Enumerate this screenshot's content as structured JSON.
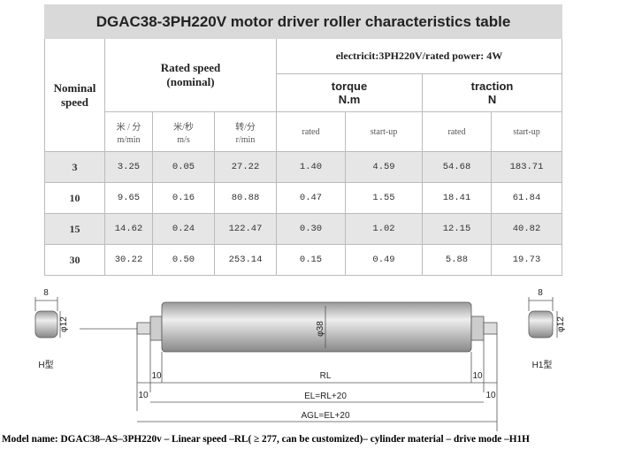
{
  "title": "DGAC38-3PH220V  motor driver roller characteristics table",
  "table": {
    "header": {
      "nominal_speed": "Nominal speed",
      "rated_speed": "Rated speed",
      "rated_speed_note": "(nominal)",
      "power": "electricit:3PH220V/rated power:  4W",
      "torque": "torque",
      "torque_unit": "N.m",
      "traction": "traction",
      "traction_unit": "N",
      "units": [
        [
          "米 / 分",
          "m/min"
        ],
        [
          "米/秒",
          "m/s"
        ],
        [
          "转/分",
          "r/min"
        ]
      ],
      "sub": [
        "rated",
        "start-up",
        "rated",
        "start-up"
      ]
    },
    "rows": [
      [
        "3",
        "3.25",
        "0.05",
        "27.22",
        "1.40",
        "4.59",
        "54.68",
        "183.71"
      ],
      [
        "10",
        "9.65",
        "0.16",
        "80.88",
        "0.47",
        "1.55",
        "18.41",
        "61.84"
      ],
      [
        "15",
        "14.62",
        "0.24",
        "122.47",
        "0.30",
        "1.02",
        "12.15",
        "40.82"
      ],
      [
        "30",
        "30.22",
        "0.50",
        "253.14",
        "0.15",
        "0.49",
        "5.88",
        "19.73"
      ]
    ]
  },
  "diagram": {
    "left_width": "8",
    "left_dia": "φ12",
    "left_type": "H型",
    "tube_dia": "φ38",
    "rl": "RL",
    "offsets": [
      "10",
      "10",
      "10",
      "10"
    ],
    "el": "EL=RL+20",
    "agl": "AGL=EL+20",
    "right_width": "8",
    "right_dia": "φ12",
    "right_type": "H1型"
  },
  "footer": "Model name: DGAC38–AS–3PH220v – Linear speed –RL( ≥ 277, can be customized)– cylinder material – drive mode –H1H"
}
